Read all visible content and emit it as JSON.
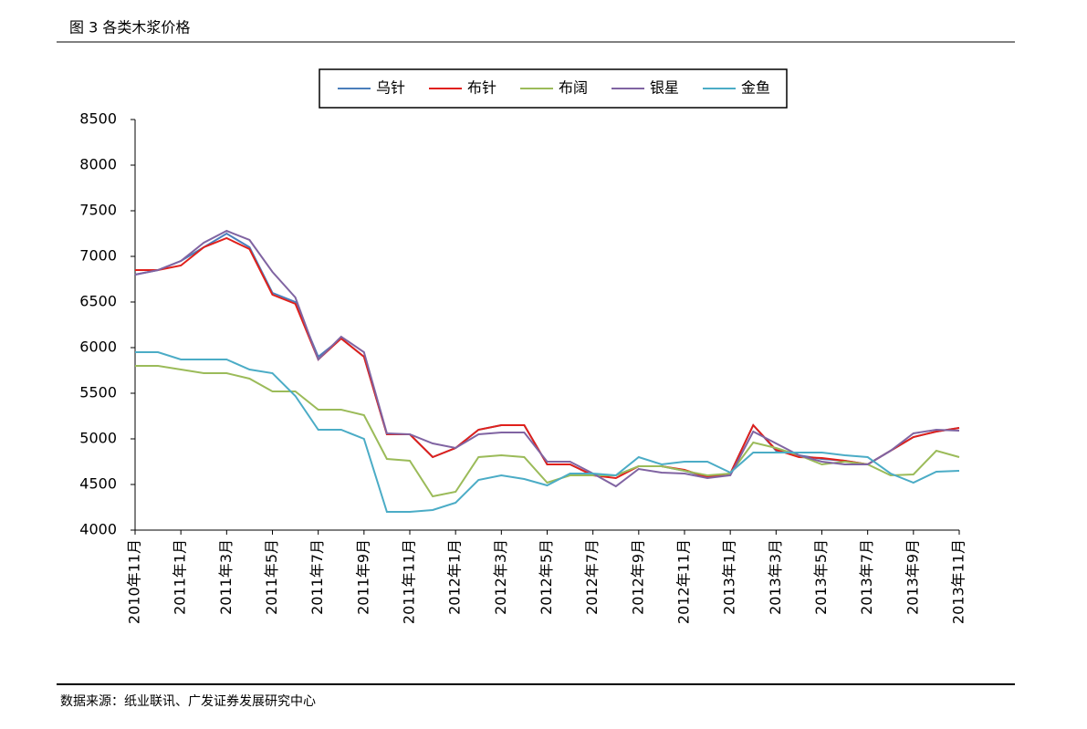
{
  "header": {
    "title": "图 3 各类木浆价格"
  },
  "chart_data": {
    "type": "line",
    "categories": [
      "2010年11月",
      null,
      "2011年1月",
      null,
      "2011年3月",
      null,
      "2011年5月",
      null,
      "2011年7月",
      null,
      "2011年9月",
      null,
      "2011年11月",
      null,
      "2012年1月",
      null,
      "2012年3月",
      null,
      "2012年5月",
      null,
      "2012年7月",
      null,
      "2012年9月",
      null,
      "2012年11月",
      null,
      "2013年1月",
      null,
      "2013年3月",
      null,
      "2013年5月",
      null,
      "2013年7月",
      null,
      "2013年9月",
      null,
      "2013年11月"
    ],
    "series": [
      {
        "name": "乌针",
        "color": "#4a7ebb",
        "values": [
          6800,
          6850,
          6950,
          7100,
          7250,
          7100,
          6600,
          6500,
          5900,
          6100,
          5900,
          5050,
          5050,
          4800,
          4900,
          5100,
          5150,
          5150,
          4720,
          4720,
          4600,
          4600,
          4700,
          4700,
          4650,
          4580,
          4620,
          5150,
          4870,
          4820,
          4780,
          4760,
          4720,
          4870,
          5020,
          5080,
          5120
        ]
      },
      {
        "name": "布针",
        "color": "#e0201b",
        "values": [
          6850,
          6850,
          6900,
          7100,
          7200,
          7080,
          6580,
          6480,
          5870,
          6100,
          5900,
          5050,
          5050,
          4800,
          4900,
          5100,
          5150,
          5150,
          4720,
          4720,
          4600,
          4570,
          4700,
          4700,
          4660,
          4580,
          4620,
          5150,
          4880,
          4800,
          4790,
          4760,
          4720,
          4870,
          5020,
          5080,
          5120
        ]
      },
      {
        "name": "布阔",
        "color": "#9bbb59",
        "values": [
          5800,
          5800,
          5760,
          5720,
          5720,
          5660,
          5520,
          5520,
          5320,
          5320,
          5260,
          4780,
          4760,
          4370,
          4420,
          4800,
          4820,
          4800,
          4520,
          4600,
          4600,
          4600,
          4700,
          4700,
          4650,
          4600,
          4620,
          4960,
          4900,
          4820,
          4720,
          4750,
          4720,
          4600,
          4610,
          4870,
          4800
        ]
      },
      {
        "name": "银星",
        "color": "#8064a2",
        "values": [
          6800,
          6850,
          6950,
          7150,
          7280,
          7180,
          6830,
          6550,
          5870,
          6120,
          5950,
          5060,
          5050,
          4950,
          4900,
          5050,
          5070,
          5070,
          4750,
          4750,
          4620,
          4480,
          4670,
          4630,
          4620,
          4570,
          4600,
          5080,
          4950,
          4820,
          4750,
          4720,
          4720,
          4870,
          5060,
          5100,
          5090
        ]
      },
      {
        "name": "金鱼",
        "color": "#4bacc6",
        "values": [
          5950,
          5950,
          5870,
          5870,
          5870,
          5760,
          5720,
          5470,
          5100,
          5100,
          5000,
          4200,
          4200,
          4220,
          4300,
          4550,
          4600,
          4560,
          4490,
          4620,
          4620,
          4600,
          4800,
          4720,
          4750,
          4750,
          4630,
          4850,
          4850,
          4850,
          4850,
          4820,
          4800,
          4620,
          4520,
          4640,
          4650
        ]
      }
    ],
    "ylim": [
      4000,
      8500
    ],
    "yticks": [
      4000,
      4500,
      5000,
      5500,
      6000,
      6500,
      7000,
      7500,
      8000,
      8500
    ],
    "grid": false,
    "legend": "top"
  },
  "source": "数据来源：纸业联讯、广发证券发展研究中心"
}
